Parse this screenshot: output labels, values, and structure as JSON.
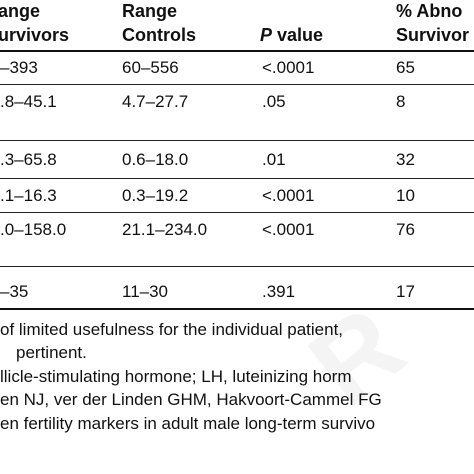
{
  "table": {
    "headers": {
      "survivors_line1": "ange",
      "survivors_line2": "urvivors",
      "controls_line1": "Range",
      "controls_line2": "Controls",
      "pvalue_italic": "P",
      "pvalue_rest": " value",
      "abnormal_line1": "% Abno",
      "abnormal_line2": "Survivor"
    },
    "rows": [
      {
        "survivors": "–393",
        "controls": "60–556",
        "p": "<.0001",
        "abnormal": "65"
      },
      {
        "survivors": ".8–45.1",
        "controls": "4.7–27.7",
        "p": ".05",
        "abnormal": "8"
      },
      {
        "survivors": ".3–65.8",
        "controls": "0.6–18.0",
        "p": ".01",
        "abnormal": "32"
      },
      {
        "survivors": ".1–16.3",
        "controls": "0.3–19.2",
        "p": "<.0001",
        "abnormal": "10"
      },
      {
        "survivors": ".0–158.0",
        "controls": "21.1–234.0",
        "p": "<.0001",
        "abnormal": "76"
      },
      {
        "survivors": "–35",
        "controls": "11–30",
        "p": ".391",
        "abnormal": "17"
      }
    ]
  },
  "footnotes": {
    "line1": "of limited usefulness for the individual patient,",
    "line2": "pertinent.",
    "line3": "llicle-stimulating hormone; LH, luteinizing horm",
    "line4": "en NJ, ver der Linden GHM, Hakvoort-Cammel FG",
    "line5": "en fertility markers in adult male long-term survivo"
  },
  "watermark": "R"
}
